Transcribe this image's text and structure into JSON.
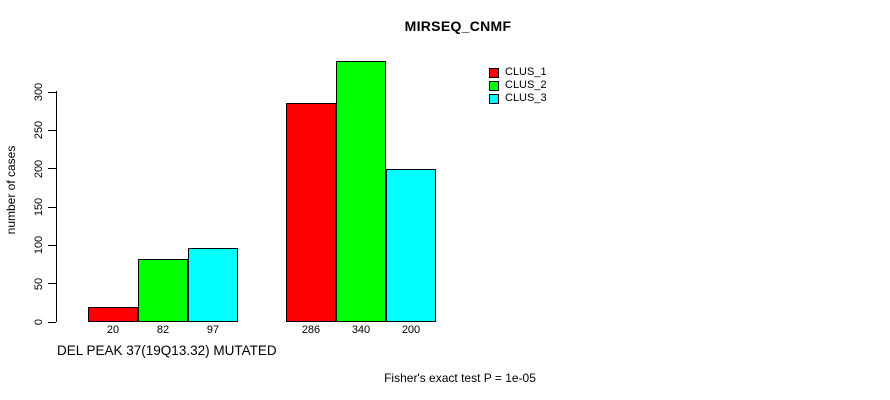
{
  "chart_data": {
    "type": "bar",
    "title": "MIRSEQ_CNMF",
    "ylabel": "number of cases",
    "xlabel": "DEL PEAK 37(19Q13.32) MUTATED",
    "annotation": "Fisher's exact test P = 1e-05",
    "series": [
      {
        "name": "CLUS_1",
        "color": "#ff0000",
        "values": [
          20,
          286
        ]
      },
      {
        "name": "CLUS_2",
        "color": "#00ff00",
        "values": [
          82,
          340
        ]
      },
      {
        "name": "CLUS_3",
        "color": "#00ffff",
        "values": [
          97,
          200
        ]
      }
    ],
    "bar_value_labels": [
      [
        20,
        82,
        97
      ],
      [
        286,
        340,
        200
      ]
    ],
    "yticks": [
      0,
      50,
      100,
      150,
      200,
      250,
      300
    ],
    "ylim": [
      0,
      340
    ],
    "grid": false,
    "legend_position": "top-right",
    "axis_color": "#000000",
    "bar_border_color": "#000000"
  }
}
